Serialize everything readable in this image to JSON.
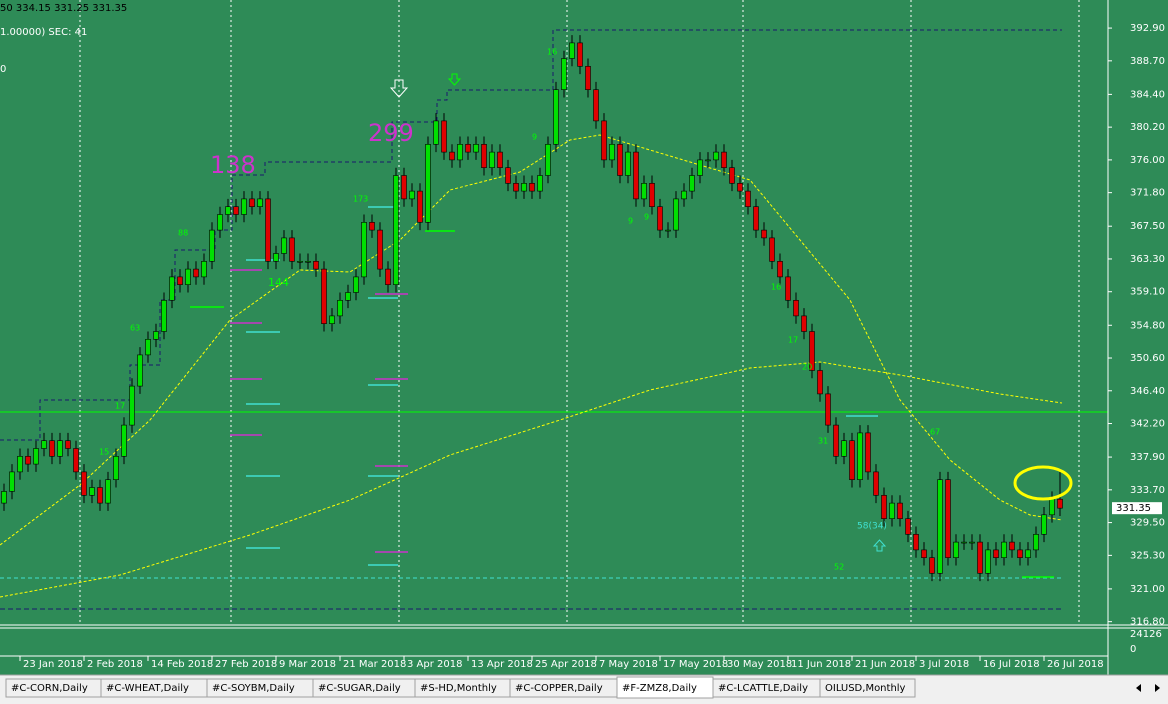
{
  "header": {
    "lines": [
      "50 334.15 331.25 331.35",
      "1.00000)  SEC: 41",
      "0"
    ]
  },
  "chart_data": {
    "type": "candlestick",
    "categories": [
      null,
      null,
      "23 Jan 2018",
      null,
      null,
      null,
      null,
      null,
      null,
      null,
      "2 Feb 2018",
      null,
      null,
      null,
      null,
      null,
      null,
      null,
      "14 Feb 2018",
      null,
      null,
      null,
      null,
      null,
      null,
      null,
      "27 Feb 2018",
      null,
      null,
      null,
      null,
      null,
      null,
      null,
      "9 Mar 2018",
      null,
      null,
      null,
      null,
      null,
      null,
      null,
      "21 Mar 2018",
      null,
      null,
      null,
      null,
      null,
      null,
      null,
      "3 Apr 2018",
      null,
      null,
      null,
      null,
      null,
      null,
      null,
      "13 Apr 2018",
      null,
      null,
      null,
      null,
      null,
      null,
      null,
      "25 Apr 2018",
      null,
      null,
      null,
      null,
      null,
      null,
      null,
      "7 May 2018",
      null,
      null,
      null,
      null,
      null,
      null,
      null,
      "17 May 2018",
      null,
      null,
      null,
      null,
      null,
      null,
      null,
      "30 May 2018",
      null,
      null,
      null,
      null,
      null,
      null,
      null,
      "11 Jun 2018",
      null,
      null,
      null,
      null,
      null,
      null,
      null,
      "21 Jun 2018",
      null,
      null,
      null,
      null,
      null,
      null,
      null,
      "3 Jul 2018",
      null,
      null,
      null,
      null,
      null,
      null,
      null,
      "16 Jul 2018",
      null,
      null,
      null,
      null,
      null,
      null,
      null,
      "26 Jul 2018",
      null,
      null
    ],
    "open": [
      332,
      333.5,
      336,
      338,
      337,
      339,
      340,
      338,
      340,
      339,
      336,
      333,
      334,
      332,
      335,
      338,
      342,
      347,
      351,
      353,
      354,
      358,
      361,
      360,
      362,
      361,
      363,
      367,
      369,
      370,
      369,
      371,
      370,
      371,
      363,
      364,
      366,
      363,
      363,
      363,
      362,
      355,
      356,
      358,
      359,
      361,
      368,
      367,
      362,
      360,
      374,
      371,
      372,
      368,
      378,
      381,
      377,
      376,
      378,
      377,
      378,
      375,
      377,
      375,
      373,
      372,
      373,
      372,
      374,
      378,
      385,
      389,
      391,
      388,
      385,
      381,
      376,
      378,
      374,
      377,
      371,
      373,
      370,
      367,
      367,
      371,
      372,
      374,
      376,
      376,
      377,
      375,
      373,
      372,
      370,
      367,
      366,
      363,
      361,
      358,
      356,
      354,
      349,
      346,
      342,
      338,
      340,
      335,
      341,
      336,
      333,
      330,
      332,
      330,
      328,
      326,
      325,
      323,
      335,
      325,
      327,
      327,
      327,
      323,
      326,
      325,
      327,
      326,
      325,
      326,
      328,
      330.5,
      332.5
    ],
    "high": [
      334.5,
      337,
      339,
      339,
      340,
      341,
      341,
      341,
      341,
      340,
      337,
      335,
      335,
      336,
      339,
      343,
      348,
      352,
      354,
      355,
      359,
      362,
      362,
      363,
      363,
      364,
      368,
      370,
      371,
      371,
      372,
      372,
      372,
      372,
      365,
      367,
      367,
      364,
      364,
      364,
      363,
      357,
      359,
      360,
      362,
      369,
      369,
      368,
      363,
      375,
      375,
      373,
      373,
      379,
      382,
      382,
      378,
      379,
      379,
      379,
      379,
      378,
      378,
      376,
      374,
      374,
      374,
      375,
      379,
      386,
      390,
      392,
      392,
      389,
      386,
      382,
      379,
      379,
      378,
      378,
      374,
      374,
      371,
      368,
      372,
      373,
      375,
      377,
      377,
      378,
      378,
      376,
      374,
      373,
      371,
      368,
      367,
      364,
      362,
      359,
      357,
      355,
      350,
      347,
      343,
      341,
      341,
      342,
      342,
      337,
      334,
      333,
      333,
      331,
      329,
      327,
      326,
      336,
      336,
      328,
      328,
      328,
      328,
      327,
      327,
      328,
      328,
      327,
      327,
      329,
      331.5,
      333.5,
      336
    ],
    "low": [
      331,
      332.5,
      335,
      336,
      336,
      338,
      337,
      337,
      338,
      335,
      332,
      332,
      331,
      331,
      334,
      337,
      341,
      346,
      350,
      352,
      353,
      357,
      359,
      359,
      360,
      360,
      362,
      366,
      368,
      368,
      368,
      369,
      369,
      362,
      362,
      363,
      362,
      362,
      362,
      361,
      354,
      354,
      355,
      357,
      358,
      360,
      366,
      361,
      359,
      359,
      370,
      370,
      367,
      367,
      377,
      376,
      375,
      375,
      376,
      376,
      374,
      374,
      374,
      372,
      371,
      371,
      371,
      371,
      373,
      377,
      384,
      388,
      387,
      384,
      380,
      375,
      375,
      373,
      373,
      370,
      370,
      369,
      366,
      366,
      366,
      370,
      371,
      373,
      375,
      375,
      374,
      372,
      371,
      369,
      366,
      365,
      362,
      360,
      357,
      355,
      353,
      348,
      345,
      341,
      337,
      337,
      334,
      334,
      335,
      332,
      329,
      329,
      329,
      327,
      325,
      324,
      322,
      322,
      324,
      324,
      326,
      326,
      322,
      322,
      324,
      324,
      325,
      324,
      324,
      325,
      327,
      329.5,
      330.35
    ],
    "close": [
      333.5,
      336,
      338,
      337,
      339,
      340,
      338,
      340,
      339,
      336,
      333,
      334,
      332,
      335,
      338,
      342,
      347,
      351,
      353,
      354,
      358,
      361,
      360,
      362,
      361,
      363,
      367,
      369,
      370,
      369,
      371,
      370,
      371,
      363,
      364,
      366,
      363,
      363,
      363,
      362,
      355,
      356,
      358,
      359,
      361,
      368,
      367,
      362,
      360,
      374,
      371,
      372,
      368,
      378,
      381,
      377,
      376,
      378,
      377,
      378,
      375,
      377,
      375,
      373,
      372,
      373,
      372,
      374,
      378,
      385,
      389,
      391,
      388,
      385,
      381,
      376,
      378,
      374,
      377,
      371,
      373,
      370,
      367,
      367,
      371,
      372,
      374,
      376,
      376,
      377,
      375,
      373,
      372,
      370,
      367,
      366,
      363,
      361,
      358,
      356,
      354,
      349,
      346,
      342,
      338,
      340,
      335,
      341,
      336,
      333,
      330,
      332,
      330,
      328,
      326,
      325,
      323,
      335,
      325,
      327,
      327,
      327,
      323,
      326,
      325,
      327,
      326,
      325,
      326,
      328,
      330.5,
      332.5,
      331.35
    ],
    "up_color": "#00e000",
    "down_color": "#e00000",
    "ylim": [
      316.5,
      396.5
    ],
    "yticks": [
      {
        "value": 392.9,
        "label": "392.90"
      },
      {
        "value": 388.7,
        "label": "388.70"
      },
      {
        "value": 384.4,
        "label": "384.40"
      },
      {
        "value": 380.2,
        "label": "380.20"
      },
      {
        "value": 376,
        "label": "376.00"
      },
      {
        "value": 371.8,
        "label": "371.80"
      },
      {
        "value": 367.5,
        "label": "367.50"
      },
      {
        "value": 363.3,
        "label": "363.30"
      },
      {
        "value": 359.1,
        "label": "359.10"
      },
      {
        "value": 354.8,
        "label": "354.80"
      },
      {
        "value": 350.6,
        "label": "350.60"
      },
      {
        "value": 346.4,
        "label": "346.40"
      },
      {
        "value": 342.2,
        "label": "342.20"
      },
      {
        "value": 337.9,
        "label": "337.90"
      },
      {
        "value": 333.7,
        "label": "333.70"
      },
      {
        "value": 329.5,
        "label": "329.50"
      },
      {
        "value": 325.3,
        "label": "325.30"
      },
      {
        "value": 321,
        "label": "321.00"
      },
      {
        "value": 316.8,
        "label": "316.80"
      }
    ],
    "current_price": 331.35,
    "volume_ticks": [
      24126,
      0
    ],
    "annotations": [
      "138",
      "299",
      "144",
      "88",
      "63",
      "17",
      "15",
      "173",
      "9",
      "16",
      "9",
      "9",
      "16",
      "17",
      "20",
      "31",
      "52",
      "58(34)",
      "67"
    ]
  },
  "tabs": {
    "items": [
      "#C-CORN,Daily",
      "#C-WHEAT,Daily",
      "#C-SOYBM,Daily",
      "#C-SUGAR,Daily",
      "#S-HD,Monthly",
      "#C-COPPER,Daily",
      "#F-ZMZ8,Daily",
      "#C-LCATTLE,Daily",
      "OILUSD,Monthly"
    ],
    "active": 6
  }
}
